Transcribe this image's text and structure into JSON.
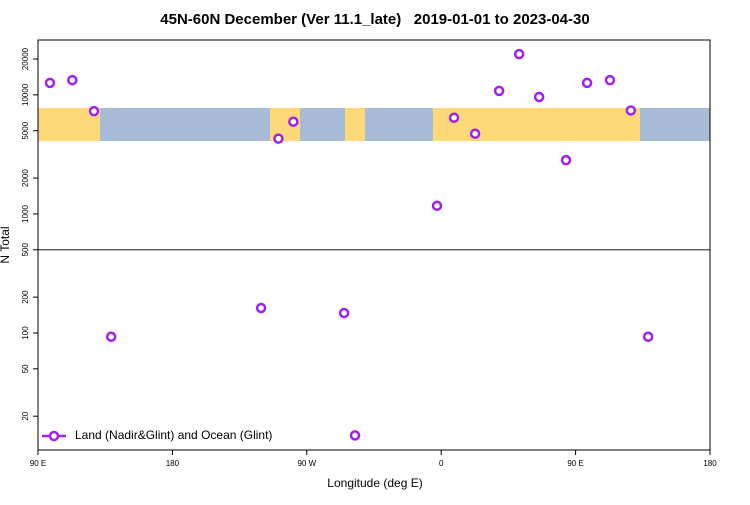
{
  "chart_data": {
    "type": "scatter",
    "title": "45N-60N December (Ver 11.1_late)   2019-01-01 to 2023-04-30",
    "x_label": "Longitude (deg E)",
    "y_label": "N Total",
    "log_y": true,
    "legend_position": "bottom-left",
    "hline": 500,
    "xlim": [
      -270,
      180
    ],
    "xticks": [
      {
        "value": -270,
        "label": "90 E"
      },
      {
        "value": -180,
        "label": "180"
      },
      {
        "value": -90,
        "label": "90 W"
      },
      0,
      {
        "value": 90,
        "label": "90 E"
      },
      180
    ],
    "ylim": [
      10.4,
      28900
    ],
    "yticks": [
      20,
      50,
      100,
      200,
      500,
      1000,
      2000,
      5000,
      10000,
      20000
    ],
    "series": [
      {
        "name": "Land (Nadir&Glint) and Ocean (Glint)",
        "color": "#a020f0",
        "x": [
          -262,
          -247,
          -232.5,
          -221,
          -120.6,
          -109,
          -99,
          -65,
          -57.7,
          -2.8,
          8.6,
          22.7,
          38.8,
          52.2,
          65.6,
          83.6,
          97.7,
          113,
          127,
          138.6
        ],
        "values": [
          12600,
          13300,
          7300,
          93,
          162,
          4290,
          5950,
          147,
          13.8,
          1170,
          6430,
          4720,
          10800,
          22000,
          9600,
          2830,
          12600,
          13300,
          7400,
          93
        ]
      }
    ]
  }
}
